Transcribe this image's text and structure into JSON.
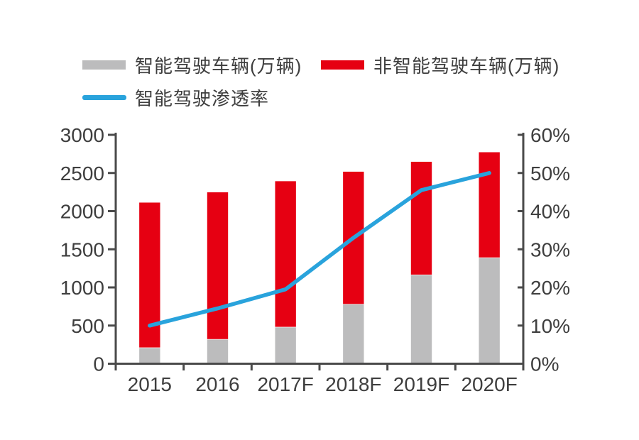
{
  "legend": {
    "items": [
      {
        "label": "智能驾驶车辆(万辆)",
        "type": "bar",
        "color": "#bcbcbd"
      },
      {
        "label": "非智能驾驶车辆(万辆)",
        "type": "bar",
        "color": "#e60012"
      },
      {
        "label": "智能驾驶渗透率",
        "type": "line",
        "color": "#29a3dc"
      }
    ]
  },
  "chart_data": {
    "type": "bar",
    "subtype": "stacked-bar-with-line",
    "categories": [
      "2015",
      "2016",
      "2017F",
      "2018F",
      "2019F",
      "2020F"
    ],
    "series": [
      {
        "name": "智能驾驶车辆(万辆)",
        "type": "bar",
        "stack": "total",
        "axis": "left",
        "color": "#bcbcbd",
        "values": [
          210,
          320,
          480,
          780,
          1165,
          1390
        ]
      },
      {
        "name": "非智能驾驶车辆(万辆)",
        "type": "bar",
        "stack": "total",
        "axis": "left",
        "color": "#e60012",
        "values": [
          1905,
          1930,
          1915,
          1740,
          1485,
          1385
        ]
      },
      {
        "name": "智能驾驶渗透率",
        "type": "line",
        "axis": "right",
        "unit": "%",
        "color": "#29a3dc",
        "values": [
          10,
          14.5,
          19.5,
          33,
          45.5,
          50
        ]
      }
    ],
    "stack_totals": [
      2115,
      2250,
      2395,
      2520,
      2650,
      2775
    ],
    "left_axis": {
      "min": 0,
      "max": 3000,
      "step": 500,
      "tick_labels": [
        "0",
        "500",
        "1000",
        "1500",
        "2000",
        "2500",
        "3000"
      ]
    },
    "right_axis": {
      "min": 0,
      "max": 60,
      "step": 10,
      "tick_labels": [
        "0%",
        "10%",
        "20%",
        "30%",
        "40%",
        "50%",
        "60%"
      ]
    },
    "grid": false,
    "legend_position": "top-left",
    "title": ""
  },
  "colors": {
    "axis": "#4a4a4a",
    "label_text": "#3e3e3e",
    "background": "#ffffff"
  }
}
